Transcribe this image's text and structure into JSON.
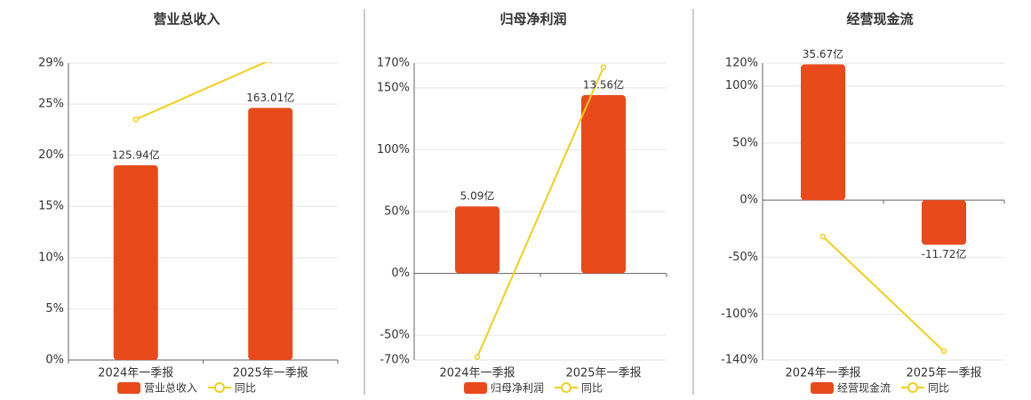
{
  "chart_data": [
    {
      "type": "bar",
      "title": "营业总收入",
      "categories": [
        "2024年一季报",
        "2025年一季报"
      ],
      "series": [
        {
          "name": "营业总收入",
          "type": "bar",
          "color": "#e84a1c",
          "axis": "y2",
          "values": [
            125.94,
            163.01
          ],
          "value_labels": [
            "125.94亿",
            "163.01亿"
          ]
        },
        {
          "name": "同比",
          "type": "line",
          "color": "#f0cf1c",
          "values": [
            23.5,
            29.3
          ]
        }
      ],
      "ylim": [
        0,
        29
      ],
      "yticks": [
        {
          "value": 0,
          "label": "0%"
        },
        {
          "value": 5,
          "label": "5%"
        },
        {
          "value": 10,
          "label": "10%"
        },
        {
          "value": 15,
          "label": "15%"
        },
        {
          "value": 20,
          "label": "20%"
        },
        {
          "value": 25,
          "label": "25%"
        },
        {
          "value": 29,
          "label": "29%"
        }
      ],
      "y2lim": [
        0,
        192
      ],
      "grid": true
    },
    {
      "type": "bar",
      "title": "归母净利润",
      "categories": [
        "2024年一季报",
        "2025年一季报"
      ],
      "series": [
        {
          "name": "归母净利润",
          "type": "bar",
          "color": "#e84a1c",
          "axis": "y2",
          "values": [
            5.09,
            13.56
          ],
          "value_labels": [
            "5.09亿",
            "13.56亿"
          ]
        },
        {
          "name": "同比",
          "type": "line",
          "color": "#f0cf1c",
          "values": [
            -67.5,
            166.7
          ]
        }
      ],
      "ylim": [
        -70,
        170
      ],
      "yticks": [
        {
          "value": 170,
          "label": "170%"
        },
        {
          "value": 150,
          "label": "150%"
        },
        {
          "value": 100,
          "label": "100%"
        },
        {
          "value": 50,
          "label": "50%"
        },
        {
          "value": 0,
          "label": "0%"
        },
        {
          "value": -50,
          "label": "-50%"
        },
        {
          "value": -70,
          "label": "-70%"
        }
      ],
      "y2lim": [
        -6.6,
        16
      ],
      "grid": true
    },
    {
      "type": "bar",
      "title": "经营现金流",
      "categories": [
        "2024年一季报",
        "2025年一季报"
      ],
      "series": [
        {
          "name": "经营现金流",
          "type": "bar",
          "color": "#e84a1c",
          "axis": "y2",
          "values": [
            35.67,
            -11.72
          ],
          "value_labels": [
            "35.67亿",
            "-11.72亿"
          ]
        },
        {
          "name": "同比",
          "type": "line",
          "color": "#f0cf1c",
          "values": [
            -31.9,
            -132.3
          ]
        }
      ],
      "ylim": [
        -140,
        120
      ],
      "yticks": [
        {
          "value": 120,
          "label": "120%"
        },
        {
          "value": 100,
          "label": "100%"
        },
        {
          "value": 50,
          "label": "50%"
        },
        {
          "value": 0,
          "label": "0%"
        },
        {
          "value": -50,
          "label": "-50%"
        },
        {
          "value": -100,
          "label": "-100%"
        },
        {
          "value": -140,
          "label": "-140%"
        }
      ],
      "y2lim": [
        -42,
        36
      ],
      "grid": true
    }
  ]
}
